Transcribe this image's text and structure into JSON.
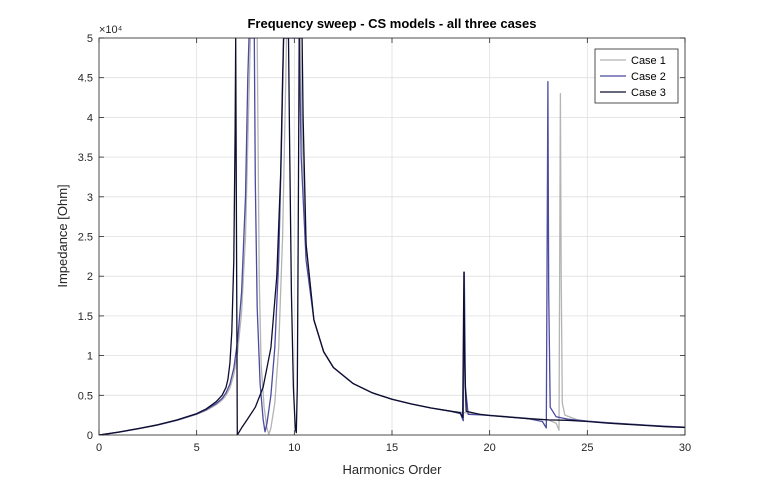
{
  "chart_data": {
    "type": "line",
    "title": "Frequency sweep - CS models - all three cases",
    "xlabel": "Harmonics Order",
    "ylabel": "Impedance [Ohm]",
    "xlim": [
      0,
      30
    ],
    "ylim": [
      0,
      50000
    ],
    "xticks": [
      0,
      5,
      10,
      15,
      20,
      25,
      30
    ],
    "yticks": [
      0,
      5000,
      10000,
      15000,
      20000,
      25000,
      30000,
      35000,
      40000,
      45000,
      50000
    ],
    "ytick_labels": [
      "0",
      "0.5",
      "1",
      "1.5",
      "2",
      "2.5",
      "3",
      "3.5",
      "4",
      "4.5",
      "5"
    ],
    "y_exponent_label": "×10⁴",
    "grid": true,
    "legend_position": "top-right",
    "series": [
      {
        "name": "Case 1",
        "color": "#b4b4b4",
        "values": [
          [
            0,
            0
          ],
          [
            1,
            350
          ],
          [
            2,
            780
          ],
          [
            3,
            1250
          ],
          [
            4,
            1850
          ],
          [
            5,
            2600
          ],
          [
            5.5,
            3100
          ],
          [
            6,
            3800
          ],
          [
            6.3,
            4400
          ],
          [
            6.5,
            5000
          ],
          [
            6.7,
            5900
          ],
          [
            6.9,
            7600
          ],
          [
            7.1,
            10500
          ],
          [
            7.3,
            15500
          ],
          [
            7.5,
            25000
          ],
          [
            7.65,
            40000
          ],
          [
            7.75,
            50000
          ],
          [
            8.1,
            50000
          ],
          [
            8.15,
            35000
          ],
          [
            8.2,
            20000
          ],
          [
            8.3,
            9000
          ],
          [
            8.45,
            3500
          ],
          [
            8.6,
            800
          ],
          [
            8.7,
            100
          ],
          [
            8.8,
            900
          ],
          [
            9.0,
            4000
          ],
          [
            9.2,
            11000
          ],
          [
            9.4,
            25000
          ],
          [
            9.55,
            43000
          ],
          [
            9.6,
            50000
          ],
          [
            10.3,
            50000
          ],
          [
            10.4,
            38000
          ],
          [
            10.6,
            24000
          ],
          [
            11,
            14500
          ],
          [
            11.5,
            10500
          ],
          [
            12,
            8500
          ],
          [
            13,
            6500
          ],
          [
            14,
            5300
          ],
          [
            15,
            4500
          ],
          [
            16,
            3900
          ],
          [
            17,
            3400
          ],
          [
            18,
            3000
          ],
          [
            19,
            2750
          ],
          [
            20,
            2500
          ],
          [
            21,
            2300
          ],
          [
            22,
            2100
          ],
          [
            23,
            1900
          ],
          [
            23.4,
            1500
          ],
          [
            23.55,
            600
          ],
          [
            23.62,
            43000
          ],
          [
            23.66,
            20000
          ],
          [
            23.72,
            4000
          ],
          [
            23.85,
            2500
          ],
          [
            24.5,
            1900
          ],
          [
            25,
            1750
          ],
          [
            26,
            1550
          ],
          [
            27,
            1400
          ],
          [
            28,
            1250
          ],
          [
            29,
            1100
          ],
          [
            30,
            1000
          ]
        ]
      },
      {
        "name": "Case 2",
        "color": "#4b4b9f",
        "values": [
          [
            0,
            0
          ],
          [
            1,
            350
          ],
          [
            2,
            790
          ],
          [
            3,
            1260
          ],
          [
            4,
            1870
          ],
          [
            5,
            2650
          ],
          [
            5.5,
            3200
          ],
          [
            6,
            3950
          ],
          [
            6.3,
            4600
          ],
          [
            6.5,
            5300
          ],
          [
            6.7,
            6400
          ],
          [
            6.9,
            8400
          ],
          [
            7.1,
            12000
          ],
          [
            7.3,
            18000
          ],
          [
            7.5,
            30000
          ],
          [
            7.62,
            45000
          ],
          [
            7.68,
            50000
          ],
          [
            7.95,
            50000
          ],
          [
            8.0,
            32000
          ],
          [
            8.1,
            16000
          ],
          [
            8.25,
            6500
          ],
          [
            8.4,
            2000
          ],
          [
            8.5,
            400
          ],
          [
            8.6,
            1500
          ],
          [
            8.8,
            5000
          ],
          [
            9.0,
            11000
          ],
          [
            9.2,
            22000
          ],
          [
            9.35,
            37000
          ],
          [
            9.45,
            50000
          ],
          [
            10.25,
            50000
          ],
          [
            10.35,
            35000
          ],
          [
            10.6,
            22000
          ],
          [
            11,
            14500
          ],
          [
            11.5,
            10500
          ],
          [
            12,
            8500
          ],
          [
            13,
            6500
          ],
          [
            14,
            5300
          ],
          [
            15,
            4500
          ],
          [
            16,
            3900
          ],
          [
            17,
            3400
          ],
          [
            18,
            3000
          ],
          [
            18.5,
            2700
          ],
          [
            18.65,
            1800
          ],
          [
            18.7,
            20500
          ],
          [
            18.76,
            6000
          ],
          [
            18.9,
            2600
          ],
          [
            19.5,
            2550
          ],
          [
            20,
            2450
          ],
          [
            21,
            2250
          ],
          [
            22,
            2050
          ],
          [
            22.7,
            1700
          ],
          [
            22.9,
            900
          ],
          [
            22.98,
            44500
          ],
          [
            23.02,
            18000
          ],
          [
            23.1,
            3500
          ],
          [
            23.4,
            2300
          ],
          [
            24,
            2000
          ],
          [
            25,
            1750
          ],
          [
            26,
            1550
          ],
          [
            27,
            1400
          ],
          [
            28,
            1250
          ],
          [
            29,
            1100
          ],
          [
            30,
            1000
          ]
        ]
      },
      {
        "name": "Case 3",
        "color": "#0d0d2e",
        "values": [
          [
            0,
            0
          ],
          [
            1,
            360
          ],
          [
            2,
            800
          ],
          [
            3,
            1280
          ],
          [
            4,
            1900
          ],
          [
            5,
            2700
          ],
          [
            5.5,
            3300
          ],
          [
            6,
            4200
          ],
          [
            6.3,
            5000
          ],
          [
            6.5,
            6000
          ],
          [
            6.6,
            7000
          ],
          [
            6.7,
            9000
          ],
          [
            6.8,
            13000
          ],
          [
            6.9,
            22000
          ],
          [
            6.97,
            38000
          ],
          [
            7.0,
            50000
          ],
          [
            7.08,
            0
          ],
          [
            7.3,
            900
          ],
          [
            7.6,
            2000
          ],
          [
            8.0,
            3500
          ],
          [
            8.4,
            6000
          ],
          [
            8.8,
            11000
          ],
          [
            9.1,
            20000
          ],
          [
            9.3,
            33000
          ],
          [
            9.4,
            45000
          ],
          [
            9.45,
            50000
          ],
          [
            9.7,
            50000
          ],
          [
            9.75,
            38000
          ],
          [
            9.85,
            18000
          ],
          [
            9.95,
            6000
          ],
          [
            10.05,
            800
          ],
          [
            10.1,
            300
          ],
          [
            10.15,
            6000
          ],
          [
            10.2,
            25000
          ],
          [
            10.25,
            50000
          ],
          [
            10.4,
            50000
          ],
          [
            10.45,
            40000
          ],
          [
            10.6,
            24000
          ],
          [
            11,
            14500
          ],
          [
            11.5,
            10500
          ],
          [
            12,
            8500
          ],
          [
            13,
            6500
          ],
          [
            14,
            5300
          ],
          [
            15,
            4500
          ],
          [
            16,
            3900
          ],
          [
            17,
            3400
          ],
          [
            18,
            3000
          ],
          [
            18.5,
            2800
          ],
          [
            18.62,
            2200
          ],
          [
            18.68,
            20500
          ],
          [
            18.72,
            9000
          ],
          [
            18.8,
            3000
          ],
          [
            19.5,
            2600
          ],
          [
            20,
            2450
          ],
          [
            21,
            2250
          ],
          [
            22,
            2050
          ],
          [
            23,
            1900
          ],
          [
            24,
            1850
          ],
          [
            25,
            1700
          ],
          [
            26,
            1500
          ],
          [
            27,
            1350
          ],
          [
            28,
            1200
          ],
          [
            29,
            1050
          ],
          [
            30,
            950
          ]
        ]
      }
    ]
  }
}
